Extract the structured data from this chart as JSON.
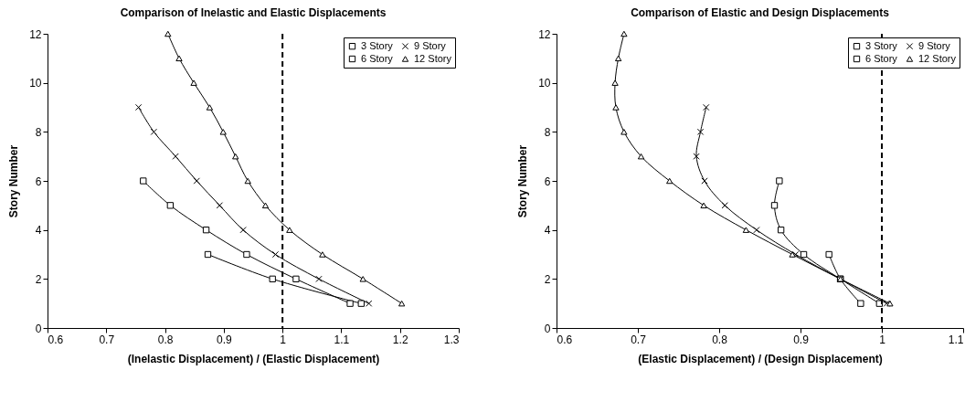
{
  "chart_data": [
    {
      "type": "line",
      "title": "Comparison of Inelastic and Elastic Displacements",
      "xlabel": "(Inelastic Displacement) / (Elastic Displacement)",
      "ylabel": "Story Number",
      "series": [
        {
          "name": "3 Story",
          "color": "#000000",
          "marker": "square",
          "x": [
            1.134,
            0.983,
            0.873
          ],
          "values": [
            1,
            2,
            3
          ]
        },
        {
          "name": "6 Story",
          "color": "#000000",
          "marker": "square",
          "x": [
            1.115,
            1.023,
            0.939,
            0.87,
            0.809,
            0.763
          ],
          "values": [
            1,
            2,
            3,
            4,
            5,
            6
          ]
        },
        {
          "name": "9 Story",
          "color": "#000000",
          "marker": "cross",
          "x": [
            1.147,
            1.062,
            0.988,
            0.933,
            0.893,
            0.854,
            0.818,
            0.781,
            0.755
          ],
          "values": [
            1,
            2,
            3,
            4,
            5,
            6,
            7,
            8,
            9
          ]
        },
        {
          "name": "12 Story",
          "color": "#000000",
          "marker": "triangle",
          "x": [
            1.203,
            1.137,
            1.068,
            1.012,
            0.971,
            0.941,
            0.92,
            0.899,
            0.876,
            0.849,
            0.824,
            0.805
          ],
          "values": [
            1,
            2,
            3,
            4,
            5,
            6,
            7,
            8,
            9,
            10,
            11,
            12
          ]
        }
      ],
      "xlim": [
        0.6,
        1.3
      ],
      "xticks": [
        0.6,
        0.7,
        0.8,
        0.9,
        1,
        1.1,
        1.2,
        1.3
      ],
      "ylim": [
        0,
        12
      ],
      "yticks": [
        0,
        2,
        4,
        6,
        8,
        10,
        12
      ],
      "ref_lines": [
        {
          "axis": "x",
          "value": 1,
          "color": "#000000",
          "line_style": "dashed"
        }
      ],
      "grid": false,
      "legend": "top right"
    },
    {
      "type": "line",
      "title": "Comparison of Elastic and Design Displacements",
      "xlabel": "(Elastic Displacement) / (Design Displacement)",
      "ylabel": "Story Number",
      "series": [
        {
          "name": "3 Story",
          "color": "#000000",
          "marker": "square",
          "x": [
            0.974,
            0.949,
            0.935
          ],
          "values": [
            1,
            2,
            3
          ]
        },
        {
          "name": "6 Story",
          "color": "#000000",
          "marker": "square",
          "x": [
            0.997,
            0.949,
            0.904,
            0.876,
            0.868,
            0.874
          ],
          "values": [
            1,
            2,
            3,
            4,
            5,
            6
          ]
        },
        {
          "name": "9 Story",
          "color": "#000000",
          "marker": "cross",
          "x": [
            1.006,
            0.949,
            0.894,
            0.846,
            0.807,
            0.782,
            0.772,
            0.777,
            0.784
          ],
          "values": [
            1,
            2,
            3,
            4,
            5,
            6,
            7,
            8,
            9
          ]
        },
        {
          "name": "12 Story",
          "color": "#000000",
          "marker": "triangle",
          "x": [
            1.01,
            0.949,
            0.89,
            0.833,
            0.781,
            0.739,
            0.704,
            0.683,
            0.673,
            0.672,
            0.676,
            0.683
          ],
          "values": [
            1,
            2,
            3,
            4,
            5,
            6,
            7,
            8,
            9,
            10,
            11,
            12
          ]
        }
      ],
      "xlim": [
        0.6,
        1.1
      ],
      "xticks": [
        0.6,
        0.7,
        0.8,
        0.9,
        1,
        1.1
      ],
      "ylim": [
        0,
        12
      ],
      "yticks": [
        0,
        2,
        4,
        6,
        8,
        10,
        12
      ],
      "ref_lines": [
        {
          "axis": "x",
          "value": 1,
          "color": "#000000",
          "line_style": "dashed"
        }
      ],
      "grid": false,
      "legend": "top right"
    }
  ]
}
